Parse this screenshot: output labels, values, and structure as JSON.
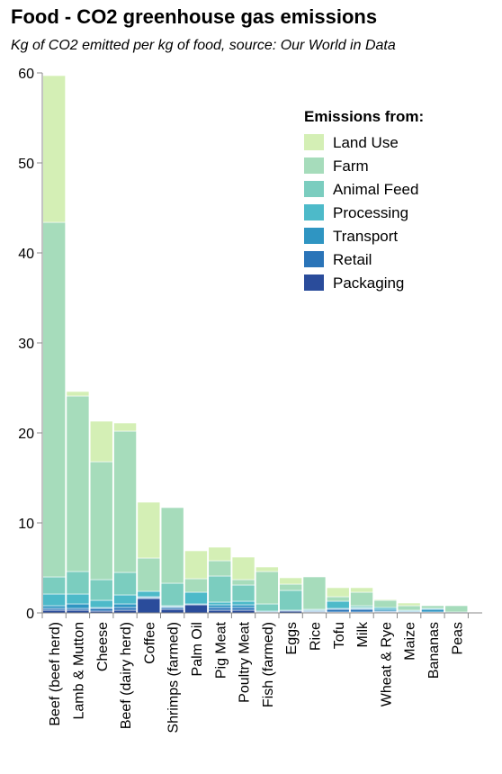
{
  "title": "Food - CO2 greenhouse gas emissions",
  "subtitle": "Kg of CO2 emitted per kg of food, source: Our World in Data",
  "chart_data": {
    "type": "bar",
    "stacked": true,
    "legend_title": "Emissions from:",
    "legend_position": "top-right",
    "ylim": [
      0,
      60
    ],
    "yticks": [
      0,
      10,
      20,
      30,
      40,
      50,
      60
    ],
    "grid": false,
    "categories": [
      "Beef (beef herd)",
      "Lamb & Mutton",
      "Cheese",
      "Beef (dairy herd)",
      "Coffee",
      "Shrimps (farmed)",
      "Palm Oil",
      "Pig Meat",
      "Poultry Meat",
      "Fish (farmed)",
      "Eggs",
      "Rice",
      "Tofu",
      "Milk",
      "Wheat & Rye",
      "Maize",
      "Bananas",
      "Peas"
    ],
    "series": [
      {
        "name": "Packaging",
        "color": "#2a4c9b",
        "values": [
          0.3,
          0.3,
          0.2,
          0.3,
          1.6,
          0.4,
          0.9,
          0.3,
          0.3,
          0.1,
          0.2,
          0.1,
          0.1,
          0.1,
          0.1,
          0.1,
          0.1,
          0.0
        ]
      },
      {
        "name": "Retail",
        "color": "#2a74b8",
        "values": [
          0.2,
          0.2,
          0.3,
          0.3,
          0.1,
          0.2,
          0.0,
          0.3,
          0.3,
          0.0,
          0.0,
          0.1,
          0.3,
          0.3,
          0.1,
          0.0,
          0.0,
          0.0
        ]
      },
      {
        "name": "Transport",
        "color": "#2f95c2",
        "values": [
          0.3,
          0.5,
          0.1,
          0.4,
          0.1,
          0.1,
          0.1,
          0.3,
          0.3,
          0.1,
          0.1,
          0.1,
          0.1,
          0.1,
          0.2,
          0.1,
          0.3,
          0.1
        ]
      },
      {
        "name": "Processing",
        "color": "#4dbac9",
        "values": [
          1.3,
          1.1,
          0.8,
          1.0,
          0.6,
          0.1,
          1.3,
          0.3,
          0.4,
          0.0,
          0.0,
          0.1,
          0.8,
          0.1,
          0.2,
          0.1,
          0.1,
          0.0
        ]
      },
      {
        "name": "Animal Feed",
        "color": "#7bcdbf",
        "values": [
          1.9,
          2.5,
          2.3,
          2.5,
          0.0,
          2.5,
          0.0,
          2.9,
          1.8,
          0.8,
          2.2,
          0.0,
          0.0,
          0.2,
          0.0,
          0.0,
          0.0,
          0.0
        ]
      },
      {
        "name": "Farm",
        "color": "#a6dcbb",
        "values": [
          39.4,
          19.5,
          13.1,
          15.7,
          3.7,
          8.4,
          1.5,
          1.7,
          0.6,
          3.6,
          0.7,
          3.6,
          0.5,
          1.5,
          0.8,
          0.5,
          0.3,
          0.7
        ]
      },
      {
        "name": "Land Use",
        "color": "#d4efb5",
        "values": [
          16.3,
          0.5,
          4.5,
          0.9,
          6.2,
          0.0,
          3.1,
          1.5,
          2.5,
          0.5,
          0.7,
          0.0,
          1.0,
          0.5,
          0.1,
          0.3,
          0.0,
          0.0
        ]
      }
    ],
    "legend_order": [
      "Land Use",
      "Farm",
      "Animal Feed",
      "Processing",
      "Transport",
      "Retail",
      "Packaging"
    ]
  }
}
